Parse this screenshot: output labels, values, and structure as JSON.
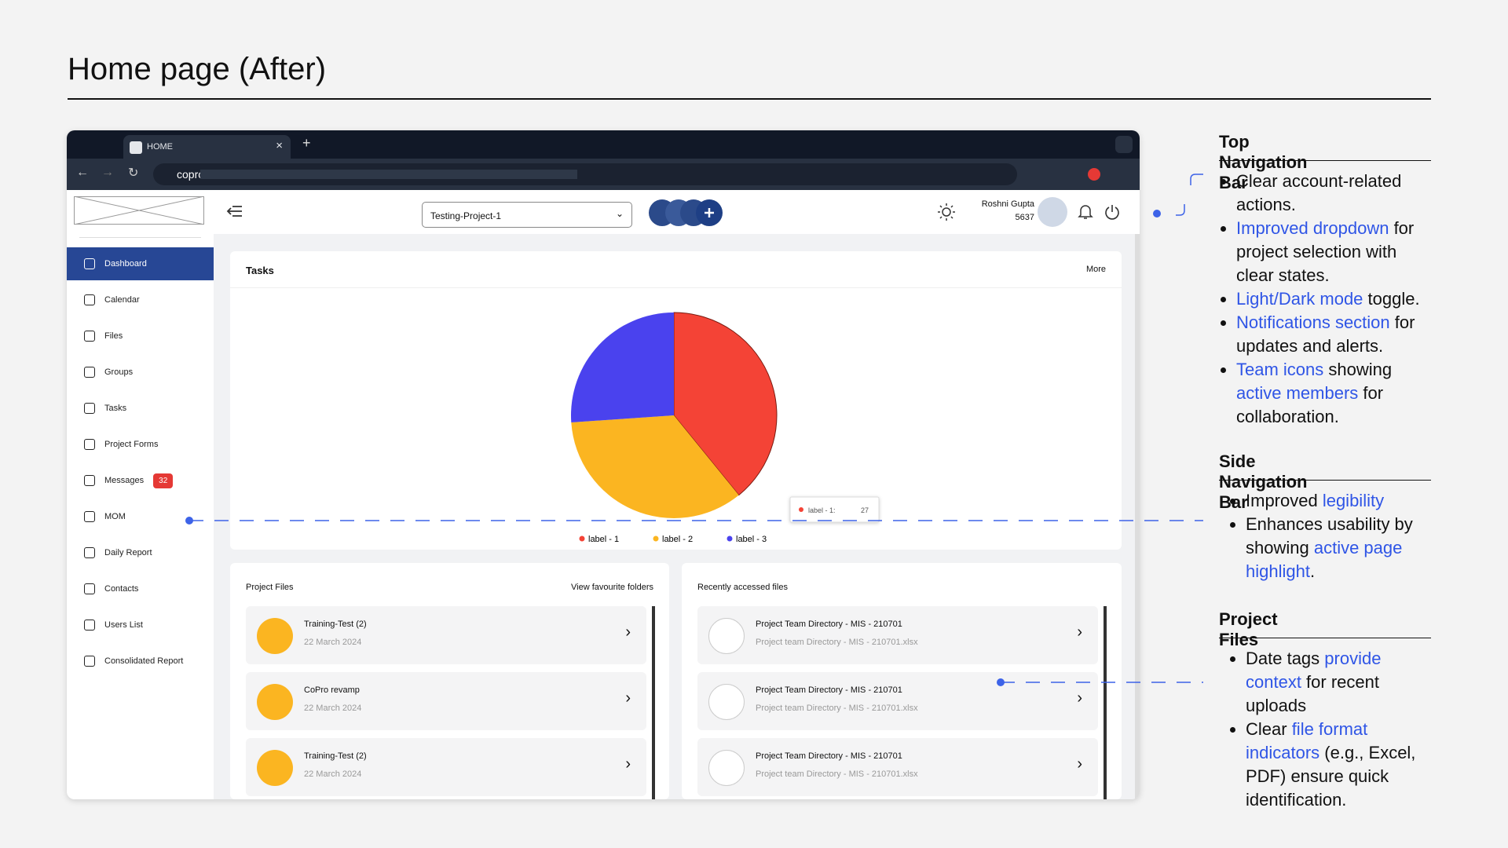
{
  "header": {
    "title": "Home page (After)"
  },
  "browser": {
    "tab": "HOME",
    "url": "copro"
  },
  "app": {
    "project": "Testing-Project-1",
    "user_name": "Roshni Gupta",
    "user_id": "5637"
  },
  "sidebar": {
    "items": [
      "Dashboard",
      "Calendar",
      "Files",
      "Groups",
      "Tasks",
      "Project Forms",
      "Messages",
      "MOM",
      "Daily Report",
      "Contacts",
      "Users List",
      "Consolidated Report"
    ],
    "messages_badge": 32
  },
  "tasks_card": {
    "title": "Tasks",
    "more": "More"
  },
  "chart_data": {
    "type": "pie",
    "categories": [
      "label - 1",
      "label - 2",
      "label - 3"
    ],
    "values": [
      27,
      24,
      18
    ],
    "colors": [
      "#f44336",
      "#fbb521",
      "#4a42ee"
    ],
    "tooltip_label": "label - 1:"
  },
  "project_files": {
    "title": "Project Files",
    "link": "View favourite folders",
    "items": [
      {
        "name": "Training-Test (2)",
        "date": "22 March 2024"
      },
      {
        "name": "CoPro revamp",
        "date": "22 March 2024"
      },
      {
        "name": "Training-Test (2)",
        "date": "22 March 2024"
      }
    ]
  },
  "recent_files": {
    "title": "Recently accessed files",
    "items": [
      {
        "name": "Project Team Directory - MIS - 210701",
        "file": "Project team Directory - MIS - 210701.xlsx"
      },
      {
        "name": "Project Team Directory - MIS - 210701",
        "file": "Project team Directory - MIS - 210701.xlsx"
      },
      {
        "name": "Project Team Directory - MIS - 210701",
        "file": "Project team Directory - MIS - 210701.xlsx"
      }
    ]
  },
  "notes": [
    {
      "heading": "Top Navigation Bar",
      "bullets": [
        [
          "Clear account-related actions."
        ],
        [
          {
            "text": "Improved dropdown",
            "link": true
          },
          " for project selection with clear states."
        ],
        [
          {
            "text": "Light/Dark mode",
            "link": true
          },
          " toggle."
        ],
        [
          {
            "text": "Notifications section",
            "link": true
          },
          " for updates and alerts."
        ],
        [
          {
            "text": "Team icons",
            "link": true
          },
          " showing ",
          {
            "text": "active members",
            "link": true
          },
          " for collaboration."
        ]
      ]
    },
    {
      "heading": "Side Navigation Bar",
      "bullets": [
        [
          "Improved ",
          {
            "text": "legibility",
            "link": true
          }
        ],
        [
          "Enhances usability by showing ",
          {
            "text": "active page highlight",
            "link": true
          },
          "."
        ]
      ]
    },
    {
      "heading": "Project Files",
      "bullets": [
        [
          "Date tags ",
          {
            "text": "provide context",
            "link": true
          },
          " for recent uploads"
        ],
        [
          "Clear ",
          {
            "text": "file format indicators",
            "link": true
          },
          " (e.g., Excel, PDF) ensure quick identification."
        ]
      ]
    }
  ]
}
